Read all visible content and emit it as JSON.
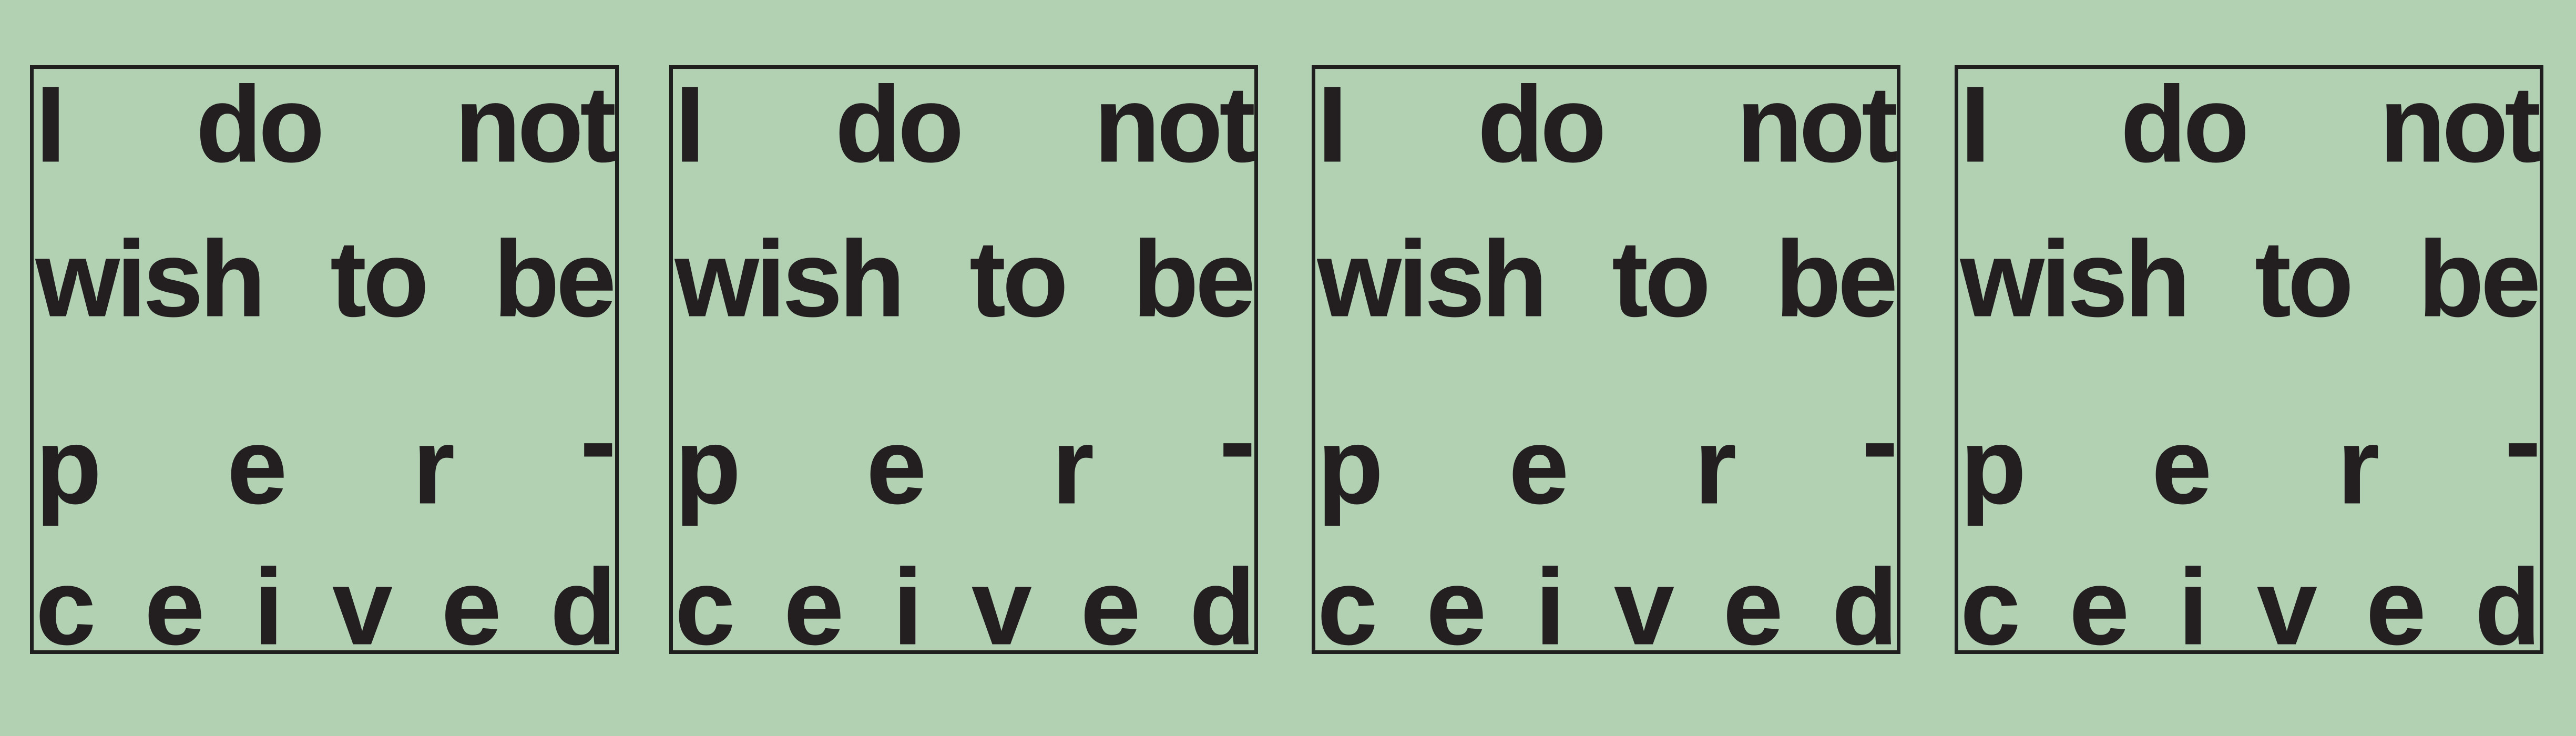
{
  "artwork": {
    "panels": [
      {
        "line1": [
          "I",
          "do",
          "not"
        ],
        "line2": [
          "wish",
          "to",
          "be"
        ],
        "line3": [
          "p",
          "e",
          "r",
          "-"
        ],
        "line4": [
          "c",
          "e",
          "i",
          "v",
          "e",
          "d"
        ]
      },
      {
        "line1": [
          "I",
          "do",
          "not"
        ],
        "line2": [
          "wish",
          "to",
          "be"
        ],
        "line3": [
          "p",
          "e",
          "r",
          "-"
        ],
        "line4": [
          "c",
          "e",
          "i",
          "v",
          "e",
          "d"
        ]
      },
      {
        "line1": [
          "I",
          "do",
          "not"
        ],
        "line2": [
          "wish",
          "to",
          "be"
        ],
        "line3": [
          "p",
          "e",
          "r",
          "-"
        ],
        "line4": [
          "c",
          "e",
          "i",
          "v",
          "e",
          "d"
        ]
      },
      {
        "line1": [
          "I",
          "do",
          "not"
        ],
        "line2": [
          "wish",
          "to",
          "be"
        ],
        "line3": [
          "p",
          "e",
          "r",
          "-"
        ],
        "line4": [
          "c",
          "e",
          "i",
          "v",
          "e",
          "d"
        ]
      }
    ],
    "colors": {
      "background": "#b2d1b3",
      "text": "#231f20",
      "border": "#1f1f1f"
    }
  }
}
